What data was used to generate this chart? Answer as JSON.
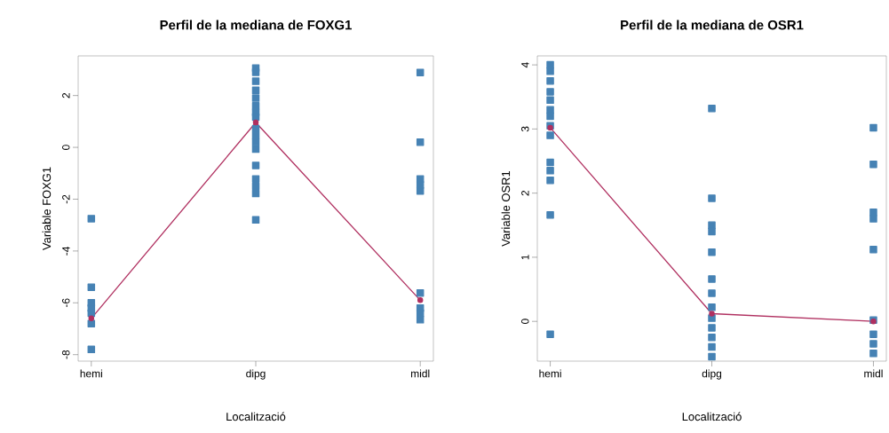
{
  "chart_data": [
    {
      "type": "scatter",
      "title": "Perfil de la mediana de FOXG1",
      "xlabel": "Localització",
      "ylabel": "Variable FOXG1",
      "categories": [
        "hemi",
        "dipg",
        "midl"
      ],
      "ylim": [
        -8.25,
        3.53
      ],
      "yticks": [
        -8,
        -6,
        -4,
        -2,
        0,
        2
      ],
      "grid": false,
      "legend": false,
      "series": [
        {
          "marker": "square",
          "color": "#4682b4",
          "x": [
            "hemi",
            "hemi",
            "hemi",
            "hemi",
            "hemi",
            "hemi",
            "hemi",
            "hemi",
            "dipg",
            "dipg",
            "dipg",
            "dipg",
            "dipg",
            "dipg",
            "dipg",
            "dipg",
            "dipg",
            "dipg",
            "dipg",
            "dipg",
            "dipg",
            "dipg",
            "dipg",
            "dipg",
            "dipg",
            "midl",
            "midl",
            "midl",
            "midl",
            "midl",
            "midl",
            "midl",
            "midl",
            "midl"
          ],
          "values": [
            -2.75,
            -5.4,
            -6.0,
            -6.2,
            -6.4,
            null,
            -6.8,
            -7.8,
            3.06,
            2.9,
            2.55,
            2.2,
            1.9,
            1.6,
            1.35,
            1.17,
            0.72,
            0.45,
            0.2,
            -0.07,
            -0.7,
            -1.22,
            -1.5,
            -1.78,
            -2.8,
            2.89,
            0.2,
            -1.22,
            -1.45,
            -1.68,
            -5.62,
            -6.2,
            -6.4,
            -6.65
          ]
        },
        {
          "type": "line",
          "marker": "circle",
          "line_style": "solid",
          "color": "#b03060",
          "x": [
            "hemi",
            "dipg",
            "midl"
          ],
          "values": [
            -6.6,
            0.96,
            -5.9
          ]
        }
      ]
    },
    {
      "type": "scatter",
      "title": "Perfil de la mediana de OSR1",
      "xlabel": "Localització",
      "ylabel": "Variable OSR1",
      "categories": [
        "hemi",
        "dipg",
        "midl"
      ],
      "ylim": [
        -0.62,
        4.14
      ],
      "yticks": [
        0,
        1,
        2,
        3,
        4
      ],
      "grid": false,
      "legend": false,
      "series": [
        {
          "marker": "square",
          "color": "#4682b4",
          "x": [
            "hemi",
            "hemi",
            "hemi",
            "hemi",
            "hemi",
            "hemi",
            "hemi",
            "hemi",
            "hemi",
            "hemi",
            "hemi",
            "hemi",
            "hemi",
            "hemi",
            "dipg",
            "dipg",
            "dipg",
            "dipg",
            "dipg",
            "dipg",
            "dipg",
            "dipg",
            "dipg",
            "dipg",
            "dipg",
            "dipg",
            "dipg",
            "midl",
            "midl",
            "midl",
            "midl",
            "midl",
            "midl",
            "midl",
            "midl",
            "midl"
          ],
          "values": [
            4.0,
            3.9,
            3.75,
            3.58,
            3.45,
            3.3,
            3.2,
            3.05,
            2.9,
            2.48,
            2.35,
            2.2,
            1.66,
            -0.2,
            3.32,
            1.92,
            1.5,
            1.4,
            1.08,
            0.66,
            0.44,
            0.22,
            0.05,
            -0.1,
            -0.25,
            -0.4,
            -0.55,
            3.02,
            2.45,
            1.7,
            1.6,
            1.12,
            0.02,
            -0.2,
            -0.35,
            -0.5
          ]
        },
        {
          "type": "line",
          "marker": "circle",
          "line_style": "solid",
          "color": "#b03060",
          "x": [
            "hemi",
            "dipg",
            "midl"
          ],
          "values": [
            3.02,
            0.12,
            0.0
          ]
        }
      ]
    }
  ]
}
